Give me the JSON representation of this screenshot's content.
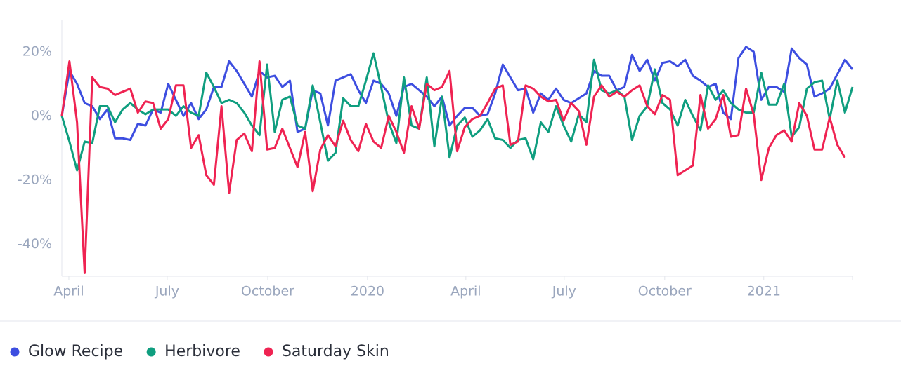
{
  "chart_data": {
    "type": "line",
    "x": [
      0,
      1,
      2,
      3,
      4,
      5,
      6,
      7,
      8,
      9,
      10,
      11,
      12,
      13,
      14,
      15,
      16,
      17,
      18,
      19,
      20,
      21,
      22,
      23,
      24,
      25,
      26,
      27,
      28,
      29,
      30,
      31,
      32,
      33,
      34,
      35,
      36,
      37,
      38,
      39,
      40,
      41,
      42,
      43,
      44,
      45,
      46,
      47,
      48,
      49,
      50,
      51,
      52,
      53,
      54,
      55,
      56,
      57,
      58,
      59,
      60,
      61,
      62,
      63,
      64,
      65,
      66,
      67,
      68,
      69,
      70,
      71,
      72,
      73,
      74,
      75,
      76,
      77,
      78,
      79,
      80,
      81,
      82,
      83,
      84,
      85,
      86,
      87,
      88,
      89,
      90,
      91,
      92,
      93,
      94,
      95,
      96,
      97,
      98,
      99,
      100,
      101,
      102,
      103,
      104
    ],
    "xlim": [
      0,
      104
    ],
    "xticks": [
      {
        "value": 0.92,
        "label": "April"
      },
      {
        "value": 13.86,
        "label": "July"
      },
      {
        "value": 27.08,
        "label": "October"
      },
      {
        "value": 40.2,
        "label": "2020"
      },
      {
        "value": 53.14,
        "label": "April"
      },
      {
        "value": 66.08,
        "label": "July"
      },
      {
        "value": 79.3,
        "label": "October"
      },
      {
        "value": 92.33,
        "label": "2021"
      }
    ],
    "ylim": [
      -50,
      30
    ],
    "yticks": [
      {
        "value": -40,
        "label": "-40%"
      },
      {
        "value": -20,
        "label": "-20%"
      },
      {
        "value": 0,
        "label": "0%"
      },
      {
        "value": 20,
        "label": "20%"
      }
    ],
    "grid": false,
    "legend": "bottom",
    "series": [
      {
        "name": "Glow Recipe",
        "color": "#3d4ee0",
        "values": [
          0,
          14,
          10,
          4,
          3,
          -1,
          2,
          -7,
          -7,
          -7.5,
          -2.5,
          -3,
          2,
          1,
          10,
          5,
          0,
          4,
          -1,
          2,
          9,
          9,
          17,
          14,
          10,
          6,
          14,
          12,
          12.5,
          9,
          11,
          -5,
          -4,
          8,
          7,
          -3,
          11,
          12,
          13,
          8,
          4,
          11,
          10,
          7,
          0,
          9,
          10,
          8,
          6,
          3,
          6,
          -3,
          0,
          2.5,
          2.5,
          0,
          0.5,
          7,
          16,
          12,
          8,
          8.5,
          1,
          7,
          5,
          8.5,
          5,
          4,
          5.5,
          7,
          14,
          12.5,
          12.5,
          8,
          9,
          19,
          14,
          17.5,
          11,
          16.5,
          17,
          15.5,
          17.5,
          12.5,
          11,
          9,
          10,
          1,
          -1,
          18,
          21.5,
          20,
          5,
          9,
          9,
          7.5,
          21,
          18,
          16,
          6,
          7,
          8.5,
          13,
          17.5,
          14.5
        ]
      },
      {
        "name": "Herbivore",
        "color": "#0f9e7f",
        "values": [
          0,
          -8,
          -17,
          -8,
          -8.5,
          3,
          3,
          -2,
          2,
          4,
          2,
          0.5,
          2,
          2,
          2,
          0,
          3,
          1,
          0,
          13.5,
          9,
          4,
          5,
          4,
          1,
          -3,
          -6,
          16,
          -5,
          5,
          6,
          -3,
          -4,
          9.5,
          -2,
          -14,
          -11.5,
          5.5,
          3,
          3,
          11,
          19.5,
          9,
          -2,
          -8.5,
          12,
          -3,
          -4,
          12,
          -9.5,
          6,
          -13,
          -3,
          -0.5,
          -6.5,
          -4.5,
          -1,
          -7,
          -7.5,
          -10,
          -7.5,
          -7,
          -13.5,
          -2,
          -5,
          3,
          -3,
          -8,
          0.5,
          -2,
          17.5,
          8,
          7,
          8,
          6,
          -7.5,
          0,
          3,
          14.5,
          4,
          2,
          -3,
          5,
          0,
          -4.5,
          9.5,
          5,
          8,
          4,
          2,
          1,
          1,
          13.5,
          3.5,
          3.5,
          10,
          -6.5,
          -3.5,
          8.5,
          10.5,
          11,
          -1,
          11,
          1,
          9
        ]
      },
      {
        "name": "Saturday Skin",
        "color": "#ef2352",
        "values": [
          0,
          17,
          -2,
          -49,
          12,
          9,
          8.5,
          6.5,
          7.5,
          8.5,
          1,
          4.5,
          4,
          -4,
          -1,
          9.5,
          9.5,
          -10,
          -6,
          -18.5,
          -21.5,
          3,
          -24,
          -7.5,
          -5.5,
          -11,
          17,
          -10.5,
          -10,
          -4,
          -10,
          -16,
          -5,
          -23.5,
          -10.5,
          -6,
          -9.5,
          -1.5,
          -7.5,
          -11,
          -2.5,
          -8,
          -10,
          0,
          -5,
          -11.5,
          3,
          -4,
          10,
          8,
          9,
          14,
          -11,
          -3.5,
          -1,
          0,
          4,
          8.5,
          9.5,
          -9,
          -8,
          9.5,
          8.5,
          6,
          4.5,
          5,
          -1.5,
          4,
          1.5,
          -9,
          6,
          9.5,
          6,
          7.5,
          6,
          8,
          9.5,
          3,
          0.5,
          6.5,
          5,
          -18.5,
          -17,
          -15.5,
          6.5,
          -4,
          -1,
          6.5,
          -6.5,
          -6,
          8.5,
          0.5,
          -20,
          -10,
          -6,
          -4.5,
          -8,
          4,
          0,
          -10.5,
          -10.5,
          -0.5,
          -9,
          -13,
          null
        ]
      }
    ]
  }
}
